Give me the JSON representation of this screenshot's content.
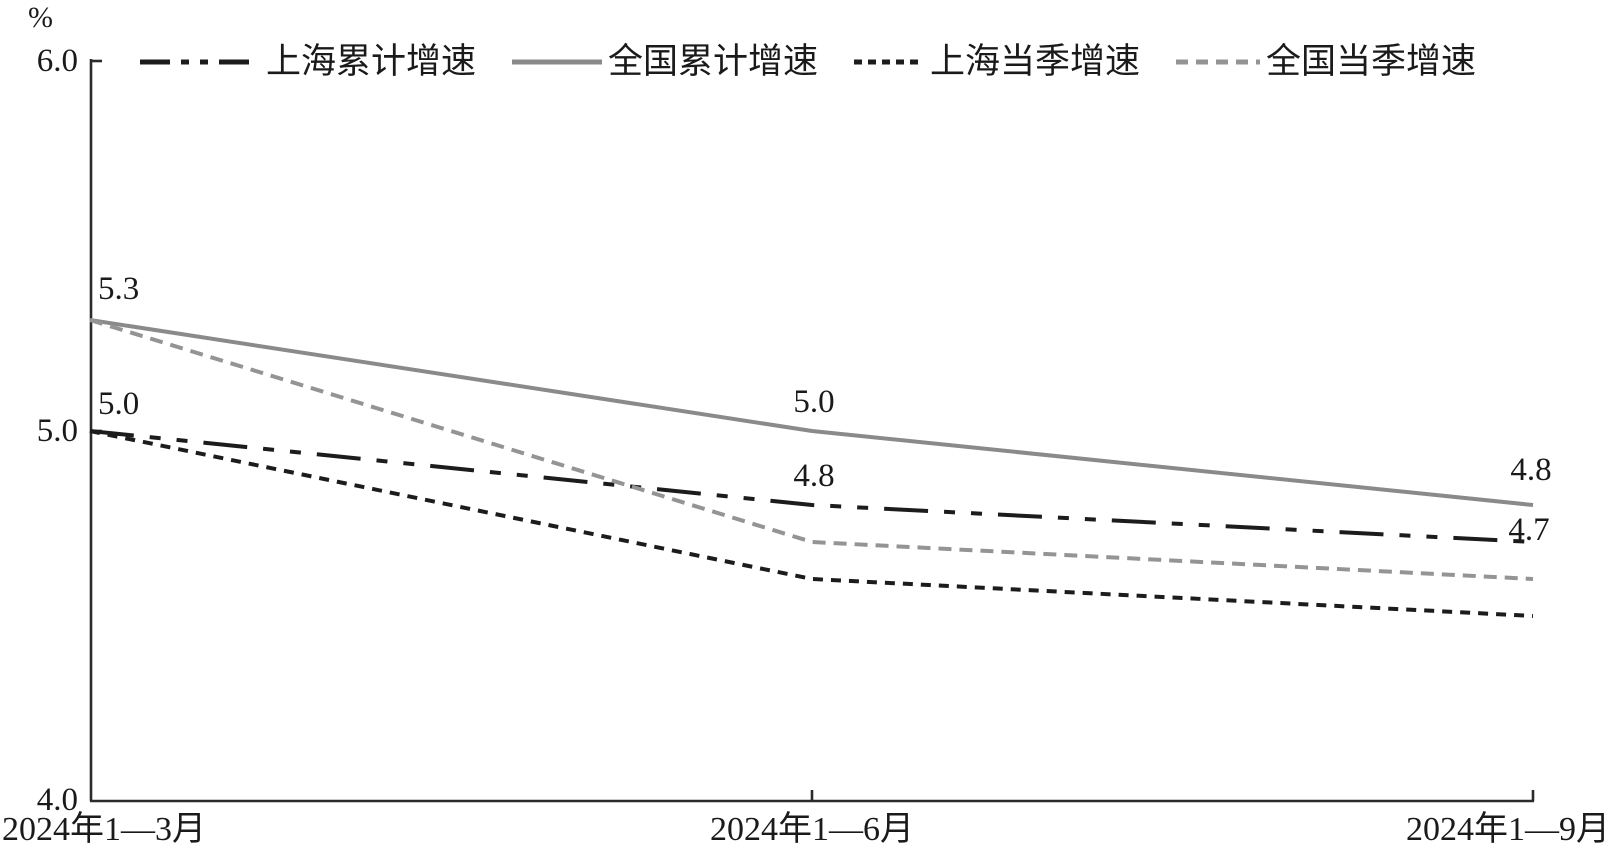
{
  "chart_data": {
    "type": "line",
    "title": "",
    "unit_label": "%",
    "categories": [
      "2024年1—3月",
      "2024年1—6月",
      "2024年1—9月"
    ],
    "y_axis": {
      "min": 4.0,
      "max": 6.0,
      "ticks": [
        "6.0",
        "5.0",
        "4.0"
      ]
    },
    "grid": false,
    "legend_position": "top",
    "series": [
      {
        "name": "上海累计增速",
        "values": [
          5.0,
          4.8,
          4.7
        ],
        "color": "#1c1c1c",
        "style": "dash-dot"
      },
      {
        "name": "全国累计增速",
        "values": [
          5.3,
          5.0,
          4.8
        ],
        "color": "#8a8a8a",
        "style": "solid"
      },
      {
        "name": "上海当季增速",
        "values": [
          5.0,
          4.6,
          4.5
        ],
        "color": "#1c1c1c",
        "style": "dotted"
      },
      {
        "name": "全国当季增速",
        "values": [
          5.3,
          4.7,
          4.6
        ],
        "color": "#949494",
        "style": "dashed"
      }
    ],
    "data_labels": [
      {
        "text": "5.3",
        "series": 1,
        "point": 0
      },
      {
        "text": "5.0",
        "series": 0,
        "point": 0
      },
      {
        "text": "5.0",
        "series": 1,
        "point": 1
      },
      {
        "text": "4.8",
        "series": 0,
        "point": 1
      },
      {
        "text": "4.8",
        "series": 1,
        "point": 2
      },
      {
        "text": "4.7",
        "series": 0,
        "point": 2
      }
    ],
    "axis_color": "#2b2b2b"
  }
}
